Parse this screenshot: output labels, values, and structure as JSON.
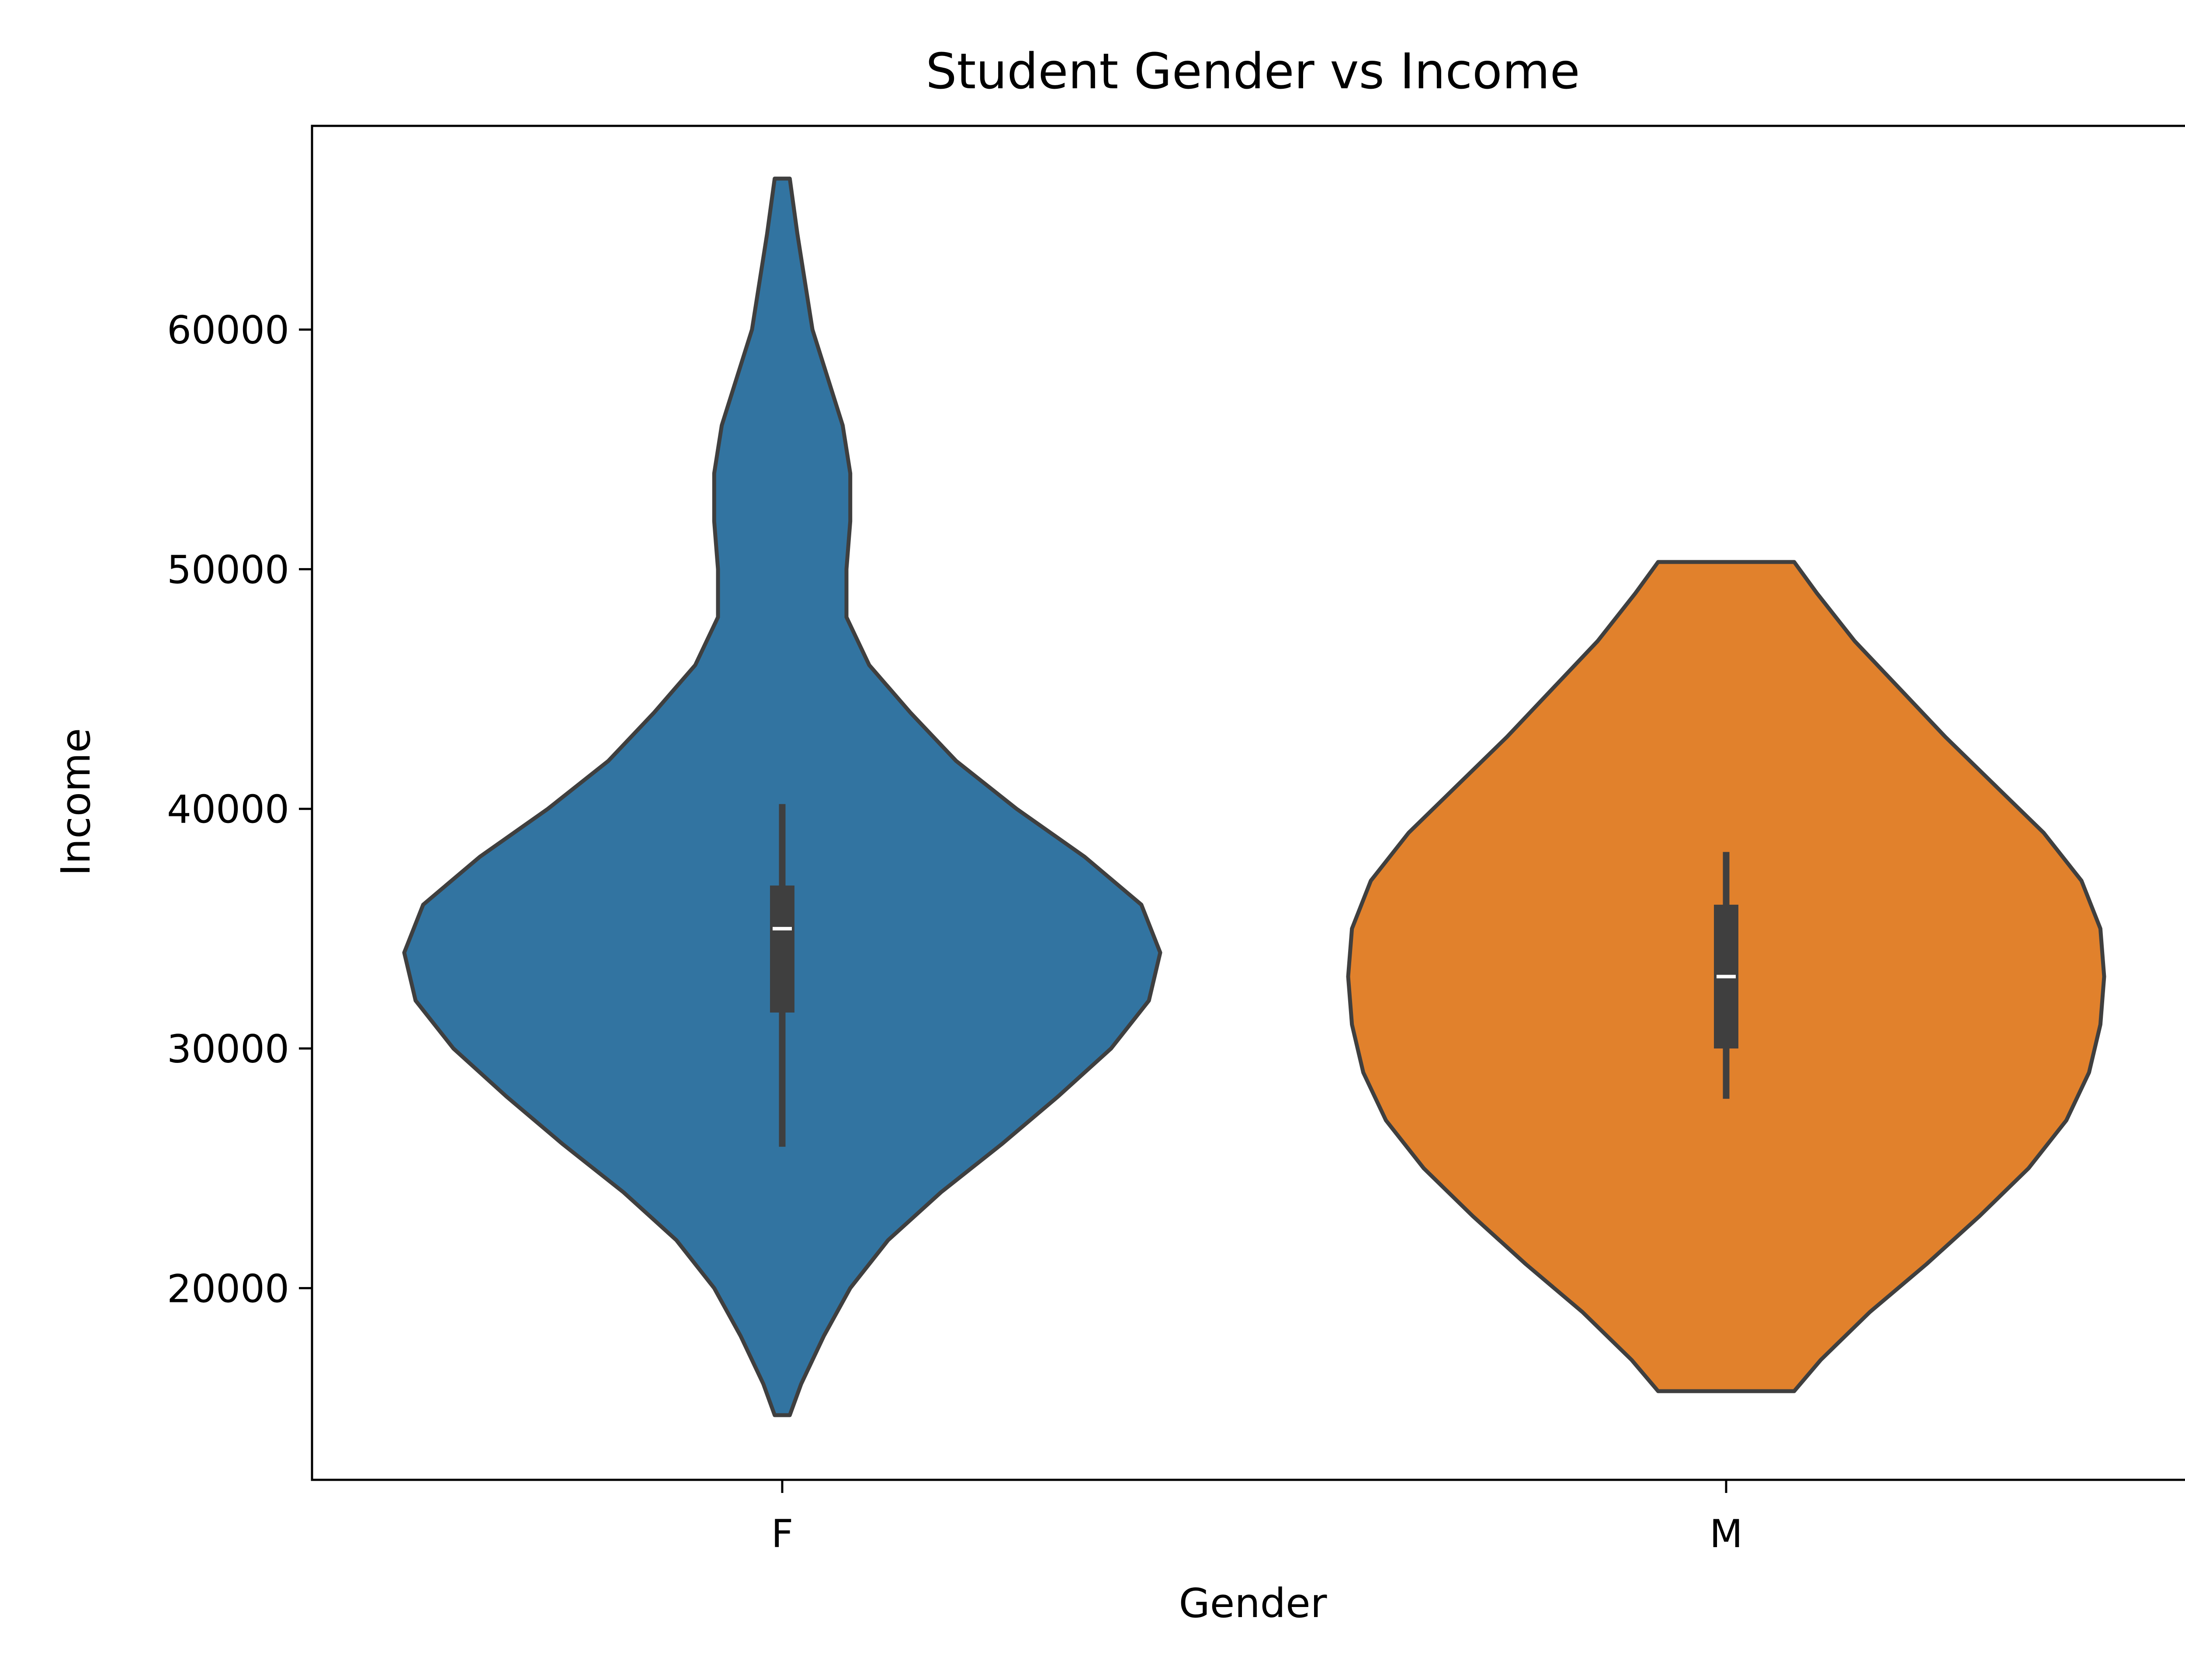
{
  "chart_data": {
    "type": "violin",
    "title": "Student Gender vs Income",
    "xlabel": "Gender",
    "ylabel": "Income",
    "categories": [
      "F",
      "M"
    ],
    "ylim": [
      12000,
      68500
    ],
    "yticks": [
      20000,
      30000,
      40000,
      50000,
      60000
    ],
    "ytick_labels": [
      "20000",
      "30000",
      "40000",
      "50000",
      "60000"
    ],
    "grid": false,
    "colors": {
      "F": "#3274a1",
      "M": "#e1812c",
      "edge": "#3f3f3f",
      "box": "#3f3f3f",
      "median": "#ffffff"
    },
    "violins": [
      {
        "category": "F",
        "min": 14700,
        "max": 66300,
        "q1": 31500,
        "median": 35000,
        "q3": 36800,
        "whisker_low": 25900,
        "whisker_high": 40200,
        "density_profile": [
          [
            14700,
            0.02
          ],
          [
            16000,
            0.05
          ],
          [
            18000,
            0.11
          ],
          [
            20000,
            0.18
          ],
          [
            22000,
            0.28
          ],
          [
            24000,
            0.42
          ],
          [
            26000,
            0.58
          ],
          [
            28000,
            0.73
          ],
          [
            30000,
            0.87
          ],
          [
            32000,
            0.97
          ],
          [
            34000,
            1.0
          ],
          [
            36000,
            0.95
          ],
          [
            38000,
            0.8
          ],
          [
            40000,
            0.62
          ],
          [
            42000,
            0.46
          ],
          [
            44000,
            0.34
          ],
          [
            46000,
            0.23
          ],
          [
            48000,
            0.17
          ],
          [
            50000,
            0.17
          ],
          [
            52000,
            0.18
          ],
          [
            54000,
            0.18
          ],
          [
            56000,
            0.16
          ],
          [
            58000,
            0.12
          ],
          [
            60000,
            0.08
          ],
          [
            62000,
            0.06
          ],
          [
            64000,
            0.04
          ],
          [
            66300,
            0.02
          ]
        ]
      },
      {
        "category": "M",
        "min": 15700,
        "max": 50300,
        "q1": 30000,
        "median": 33000,
        "q3": 36000,
        "whisker_low": 27900,
        "whisker_high": 38200,
        "density_profile": [
          [
            15700,
            0.18
          ],
          [
            17000,
            0.25
          ],
          [
            19000,
            0.38
          ],
          [
            21000,
            0.53
          ],
          [
            23000,
            0.67
          ],
          [
            25000,
            0.8
          ],
          [
            27000,
            0.9
          ],
          [
            29000,
            0.96
          ],
          [
            31000,
            0.99
          ],
          [
            33000,
            1.0
          ],
          [
            35000,
            0.99
          ],
          [
            37000,
            0.94
          ],
          [
            39000,
            0.84
          ],
          [
            41000,
            0.71
          ],
          [
            43000,
            0.58
          ],
          [
            45000,
            0.46
          ],
          [
            47000,
            0.34
          ],
          [
            49000,
            0.24
          ],
          [
            50300,
            0.18
          ]
        ]
      }
    ]
  }
}
